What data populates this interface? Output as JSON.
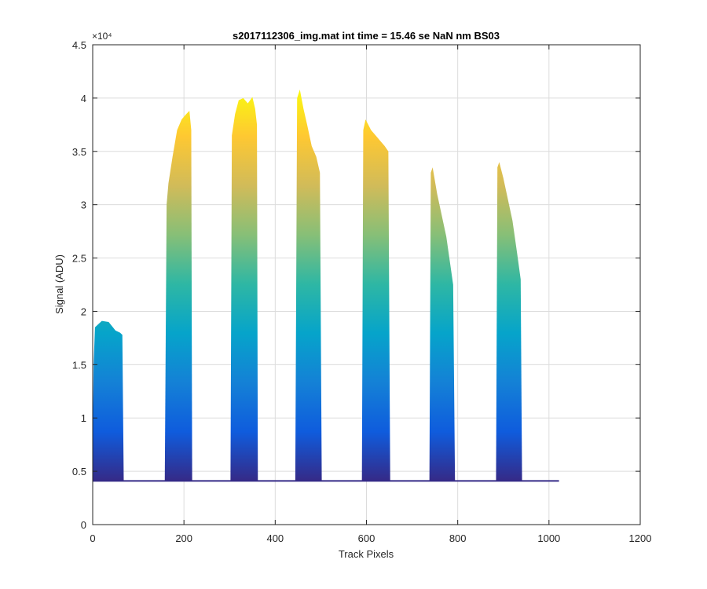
{
  "chart_data": {
    "type": "area",
    "title": "s2017112306_img.mat int time = 15.46 se  NaN nm BS03",
    "xlabel": "Track Pixels",
    "ylabel": "Signal (ADU)",
    "xlim": [
      0,
      1200
    ],
    "ylim": [
      0,
      45000
    ],
    "x_ticks": [
      0,
      200,
      400,
      600,
      800,
      1000,
      1200
    ],
    "y_ticks": [
      0,
      0.5,
      1,
      1.5,
      2,
      2.5,
      3,
      3.5,
      4,
      4.5
    ],
    "y_tick_labels": [
      "0",
      "0.5",
      "1",
      "1.5",
      "2",
      "2.5",
      "3",
      "3.5",
      "4",
      "4.5"
    ],
    "y_exponent_label": "×10⁴",
    "grid": true,
    "baseline": 4100,
    "x_end": 1022,
    "colormap": [
      "#352a87",
      "#0f5cdd",
      "#1481d6",
      "#06a4ca",
      "#2eb7a4",
      "#87bf77",
      "#d1bb59",
      "#fec832",
      "#f9fb0e"
    ],
    "peaks": [
      {
        "start": 0,
        "end": 68,
        "top": [
          [
            0,
            8000
          ],
          [
            2,
            15000
          ],
          [
            5,
            18500
          ],
          [
            20,
            19100
          ],
          [
            35,
            19000
          ],
          [
            50,
            18200
          ],
          [
            60,
            18000
          ],
          [
            65,
            17800
          ],
          [
            68,
            4100
          ]
        ]
      },
      {
        "start": 158,
        "end": 218,
        "top": [
          [
            158,
            4200
          ],
          [
            162,
            30000
          ],
          [
            166,
            32000
          ],
          [
            175,
            34500
          ],
          [
            185,
            37000
          ],
          [
            195,
            38000
          ],
          [
            205,
            38500
          ],
          [
            212,
            38800
          ],
          [
            216,
            37000
          ],
          [
            218,
            4200
          ]
        ]
      },
      {
        "start": 302,
        "end": 362,
        "top": [
          [
            302,
            4200
          ],
          [
            305,
            36500
          ],
          [
            312,
            38500
          ],
          [
            320,
            39800
          ],
          [
            330,
            40000
          ],
          [
            340,
            39500
          ],
          [
            350,
            40100
          ],
          [
            356,
            39000
          ],
          [
            360,
            37500
          ],
          [
            362,
            4200
          ]
        ]
      },
      {
        "start": 444,
        "end": 502,
        "top": [
          [
            444,
            4200
          ],
          [
            448,
            40000
          ],
          [
            454,
            40800
          ],
          [
            462,
            39000
          ],
          [
            470,
            37500
          ],
          [
            480,
            35500
          ],
          [
            490,
            34500
          ],
          [
            498,
            33000
          ],
          [
            502,
            4200
          ]
        ]
      },
      {
        "start": 590,
        "end": 652,
        "top": [
          [
            590,
            4200
          ],
          [
            593,
            37000
          ],
          [
            598,
            38000
          ],
          [
            610,
            37000
          ],
          [
            620,
            36500
          ],
          [
            630,
            36000
          ],
          [
            640,
            35500
          ],
          [
            648,
            35000
          ],
          [
            652,
            4200
          ]
        ]
      },
      {
        "start": 738,
        "end": 794,
        "top": [
          [
            738,
            4200
          ],
          [
            741,
            33000
          ],
          [
            745,
            33500
          ],
          [
            755,
            31000
          ],
          [
            765,
            29000
          ],
          [
            775,
            27000
          ],
          [
            785,
            24000
          ],
          [
            790,
            22500
          ],
          [
            794,
            4200
          ]
        ]
      },
      {
        "start": 884,
        "end": 941,
        "top": [
          [
            884,
            4200
          ],
          [
            887,
            33500
          ],
          [
            891,
            34000
          ],
          [
            900,
            32500
          ],
          [
            910,
            30500
          ],
          [
            920,
            28500
          ],
          [
            930,
            25500
          ],
          [
            938,
            23000
          ],
          [
            941,
            4200
          ]
        ]
      }
    ]
  }
}
